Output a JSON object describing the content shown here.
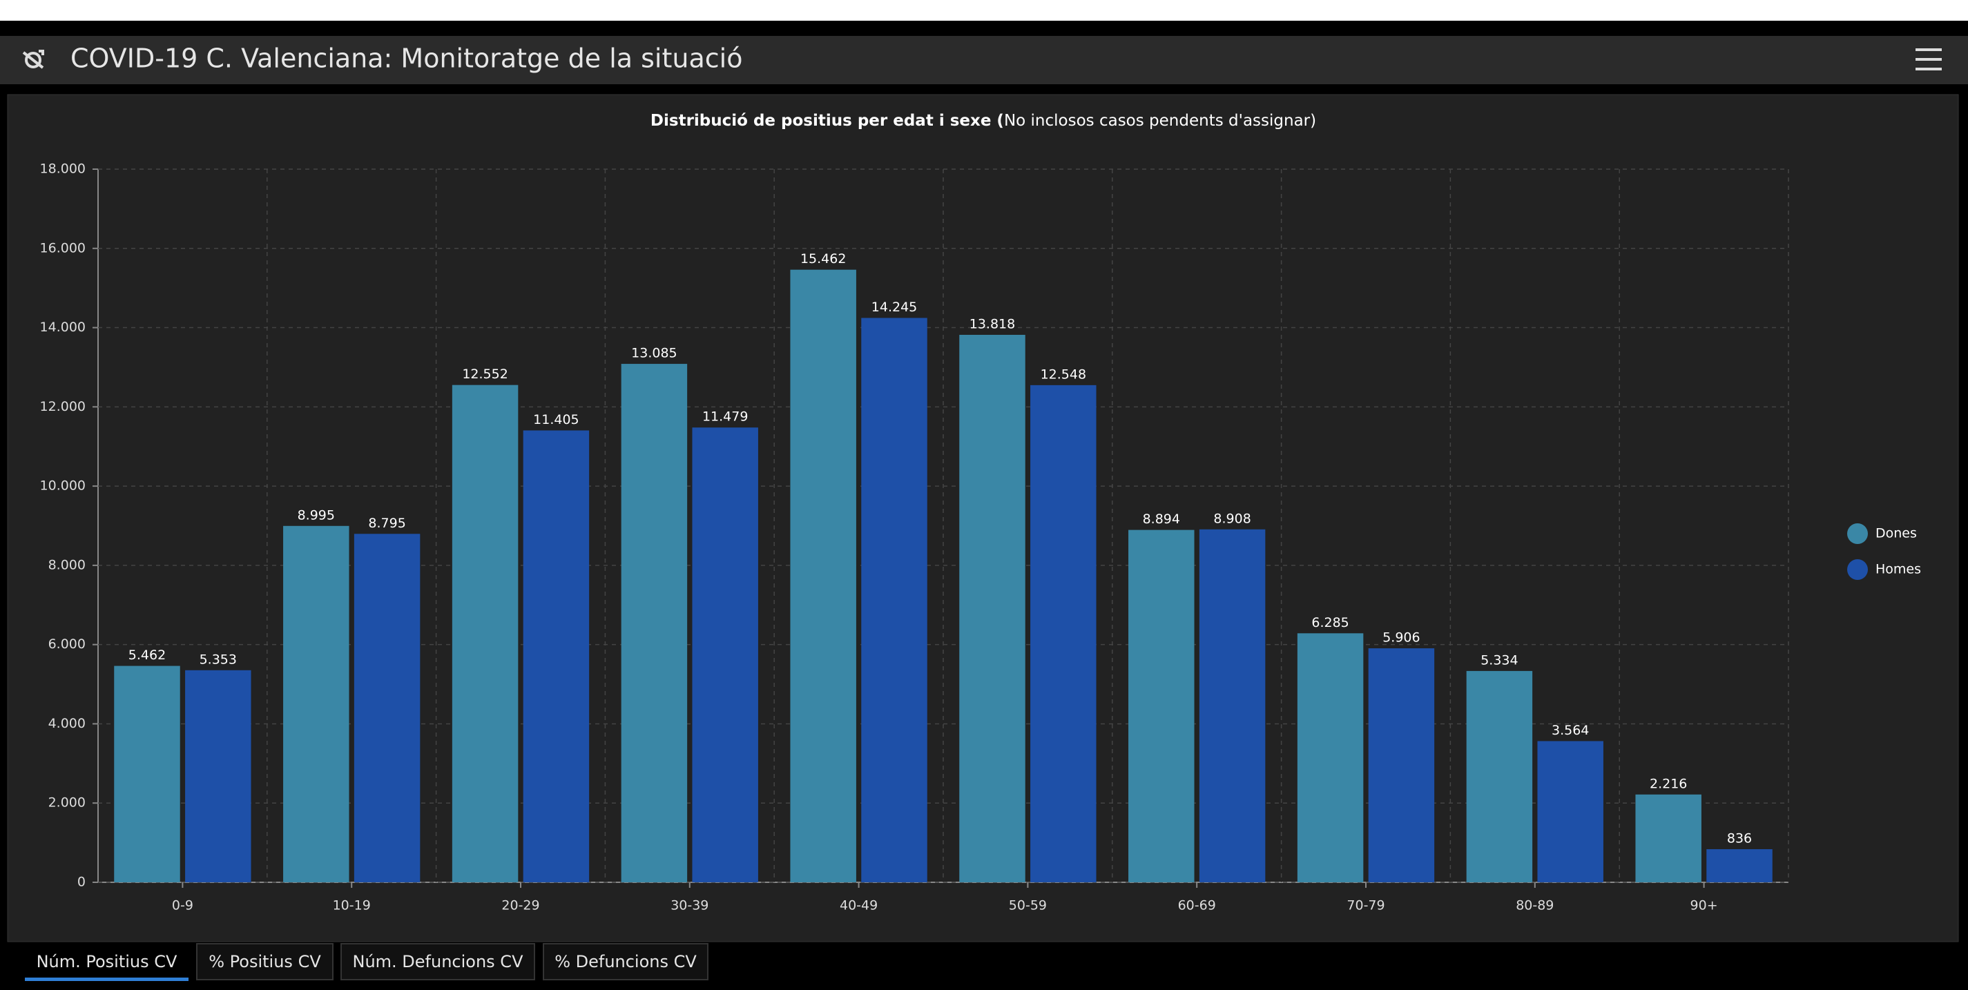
{
  "header": {
    "title": "COVID-19 C. Valenciana: Monitoratge de la situació"
  },
  "chart_data": {
    "type": "bar",
    "title": "Distribució de positius per edat i sexe (",
    "subtitle": "No inclosos casos pendents d'assignar)",
    "categories": [
      "0-9",
      "10-19",
      "20-29",
      "30-39",
      "40-49",
      "50-59",
      "60-69",
      "70-79",
      "80-89",
      "90+"
    ],
    "series": [
      {
        "name": "Dones",
        "color": "#3a87a6",
        "values": [
          5462,
          8995,
          12552,
          13085,
          15462,
          13818,
          8894,
          6285,
          5334,
          2216
        ],
        "value_labels": [
          "5.462",
          "8.995",
          "12.552",
          "13.085",
          "15.462",
          "13.818",
          "8.894",
          "6.285",
          "5.334",
          "2.216"
        ]
      },
      {
        "name": "Homes",
        "color": "#1e50a8",
        "values": [
          5353,
          8795,
          11405,
          11479,
          14245,
          12548,
          8908,
          5906,
          3564,
          836
        ],
        "value_labels": [
          "5.353",
          "8.795",
          "11.405",
          "11.479",
          "14.245",
          "12.548",
          "8.908",
          "5.906",
          "3.564",
          "836"
        ]
      }
    ],
    "ylim": [
      0,
      18000
    ],
    "yticks": [
      0,
      {
        "value": 2000,
        "label": "2.000"
      },
      {
        "value": 4000,
        "label": "4.000"
      },
      {
        "value": 6000,
        "label": "6.000"
      },
      {
        "value": 8000,
        "label": "8.000"
      },
      {
        "value": 10000,
        "label": "10.000"
      },
      {
        "value": 12000,
        "label": "12.000"
      },
      {
        "value": 14000,
        "label": "14.000"
      },
      {
        "value": 16000,
        "label": "16.000"
      },
      {
        "value": 18000,
        "label": "18.000"
      }
    ],
    "grid": true,
    "legend": "right"
  },
  "tabs": [
    "Núm. Positius CV",
    "% Positius CV",
    "Núm. Defuncions CV",
    "% Defuncions CV"
  ]
}
